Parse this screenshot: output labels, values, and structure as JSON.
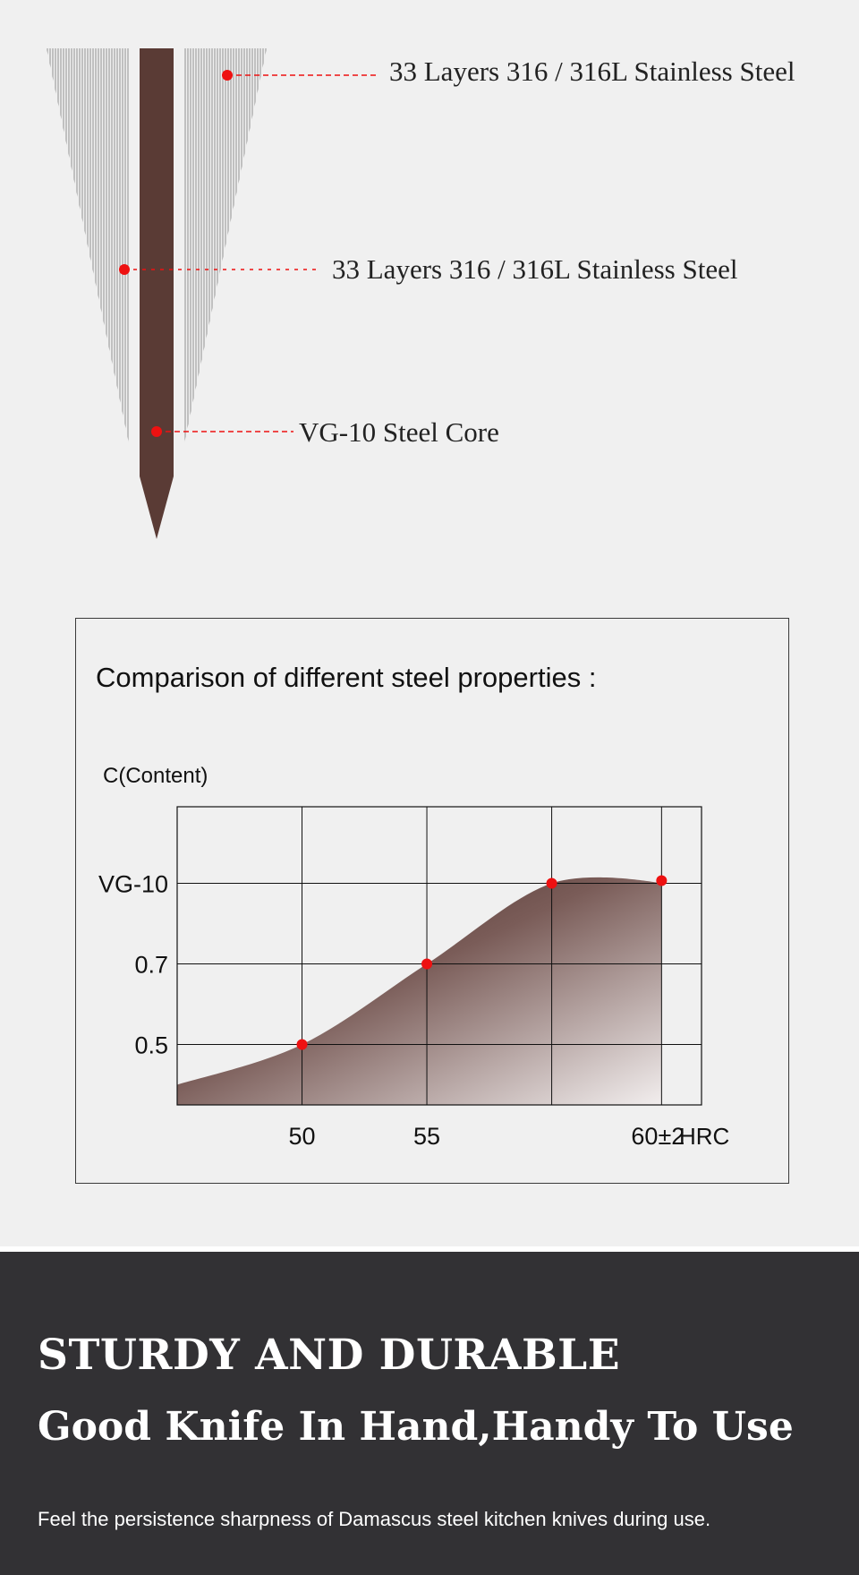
{
  "diagram": {
    "callouts": [
      {
        "label": "33 Layers 316 / 316L Stainless Steel"
      },
      {
        "label": "33 Layers 316 / 316L Stainless Steel"
      },
      {
        "label": "VG-10 Steel Core"
      }
    ],
    "colors": {
      "core": "#5a3b35",
      "layers": "#9a9a9a",
      "marker": "#ee1111"
    }
  },
  "chart": {
    "title": "Comparison of different steel properties :"
  },
  "chart_data": {
    "type": "area",
    "xlabel": "HRC",
    "ylabel": "C(Content)",
    "x_ticks": [
      {
        "value": 50,
        "label": "50"
      },
      {
        "value": 55,
        "label": "55"
      },
      {
        "value": 60,
        "label": "60±2"
      }
    ],
    "y_ticks": [
      {
        "value": 0.5,
        "label": "0.5"
      },
      {
        "value": 0.7,
        "label": "0.7"
      },
      {
        "value": 0.9,
        "label": "VG-10"
      }
    ],
    "xlim": [
      45,
      66
    ],
    "ylim": [
      0.35,
      1.09
    ],
    "points": [
      {
        "x": 50,
        "y": 0.5
      },
      {
        "x": 55,
        "y": 0.7
      },
      {
        "x": 60,
        "y": 0.9
      },
      {
        "x": 64.4,
        "y": 0.9
      }
    ],
    "curve": [
      {
        "x": 45,
        "y": 0.4
      },
      {
        "x": 50,
        "y": 0.5
      },
      {
        "x": 55,
        "y": 0.7
      },
      {
        "x": 60,
        "y": 0.9
      },
      {
        "x": 64.4,
        "y": 0.9
      }
    ],
    "grid": true,
    "fill": "gradient brown",
    "marker_color": "#ee1111"
  },
  "footer": {
    "headline_1": "STURDY AND DURABLE",
    "headline_2": "Good Knife In Hand,Handy To Use",
    "tagline": "Feel the persistence sharpness of Damascus steel kitchen knives during use."
  }
}
